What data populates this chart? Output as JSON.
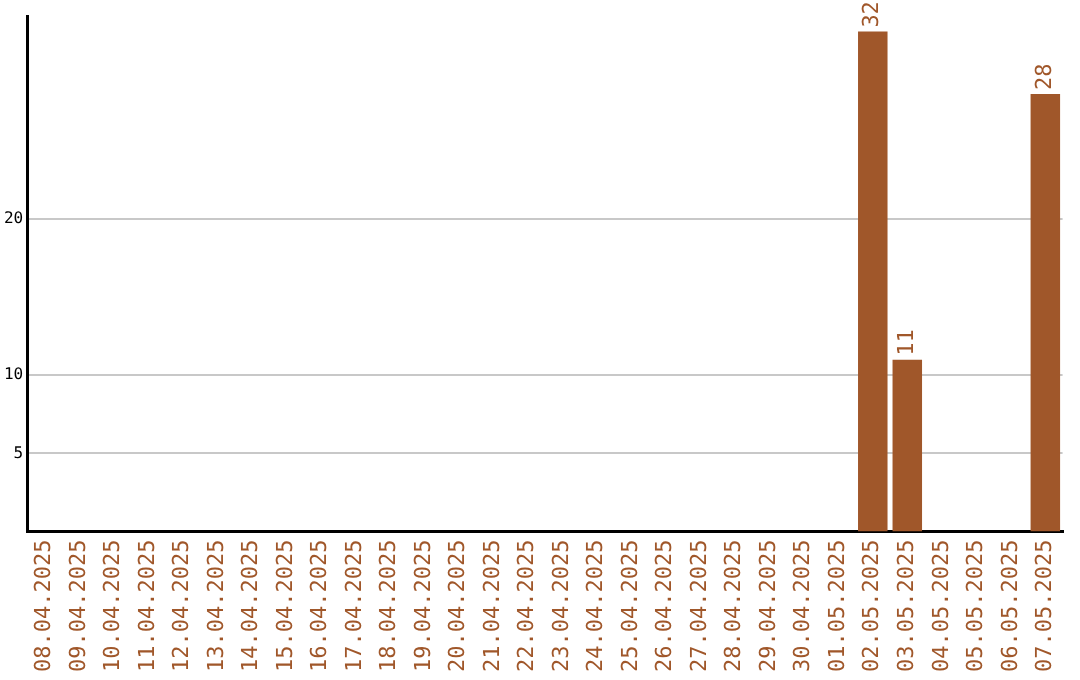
{
  "chart_data": {
    "type": "bar",
    "categories": [
      "08.04.2025",
      "09.04.2025",
      "10.04.2025",
      "11.04.2025",
      "12.04.2025",
      "13.04.2025",
      "14.04.2025",
      "15.04.2025",
      "16.04.2025",
      "17.04.2025",
      "18.04.2025",
      "19.04.2025",
      "20.04.2025",
      "21.04.2025",
      "22.04.2025",
      "23.04.2025",
      "24.04.2025",
      "25.04.2025",
      "26.04.2025",
      "27.04.2025",
      "28.04.2025",
      "29.04.2025",
      "30.04.2025",
      "01.05.2025",
      "02.05.2025",
      "03.05.2025",
      "04.05.2025",
      "05.05.2025",
      "06.05.2025",
      "07.05.2025"
    ],
    "values": [
      0,
      0,
      0,
      0,
      0,
      0,
      0,
      0,
      0,
      0,
      0,
      0,
      0,
      0,
      0,
      0,
      0,
      0,
      0,
      0,
      0,
      0,
      0,
      0,
      32,
      11,
      0,
      0,
      0,
      28
    ],
    "value_labels": [
      null,
      null,
      null,
      null,
      null,
      null,
      null,
      null,
      null,
      null,
      null,
      null,
      null,
      null,
      null,
      null,
      null,
      null,
      null,
      null,
      null,
      null,
      null,
      null,
      "32",
      "11",
      null,
      null,
      null,
      "28"
    ],
    "color": "#a0572a",
    "ylim": [
      0,
      33
    ],
    "yticks": [
      5,
      10,
      20
    ],
    "grid": "y",
    "legend": false
  }
}
